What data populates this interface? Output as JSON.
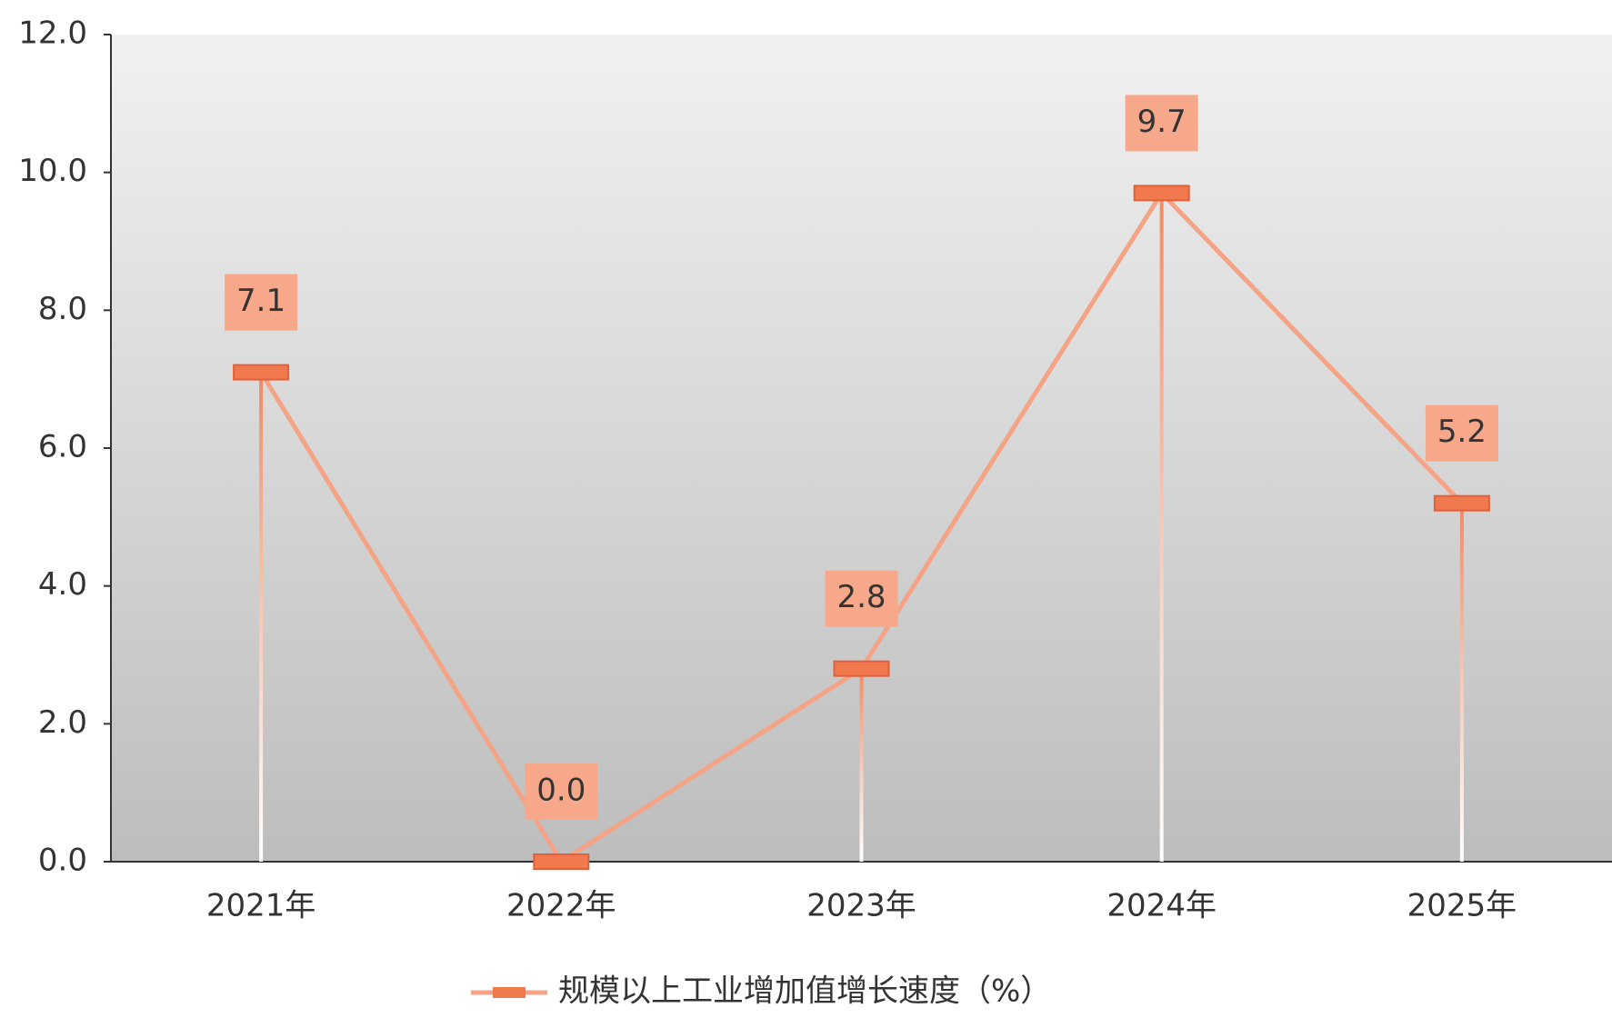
{
  "chart_data": {
    "type": "line",
    "categories": [
      "2021年",
      "2022年",
      "2023年",
      "2024年",
      "2025年"
    ],
    "series": [
      {
        "name": "规模以上工业增加值增长速度（%）",
        "color": "#f4a384",
        "values": [
          7.1,
          0,
          2.8,
          9.7,
          5.2
        ],
        "value_labels": [
          "7.1",
          "0.0",
          "2.8",
          "9.7",
          "5.2"
        ]
      }
    ],
    "ylim": [
      0,
      12
    ],
    "yticks": [
      {
        "value": 0,
        "label": "0.0"
      },
      {
        "value": 2,
        "label": "2.0"
      },
      {
        "value": 4,
        "label": "4.0"
      },
      {
        "value": 6,
        "label": "6.0"
      },
      {
        "value": 8,
        "label": "8.0"
      },
      {
        "value": 10,
        "label": "10.0"
      },
      {
        "value": 12,
        "label": "12.0"
      }
    ],
    "legend": "bottom"
  }
}
